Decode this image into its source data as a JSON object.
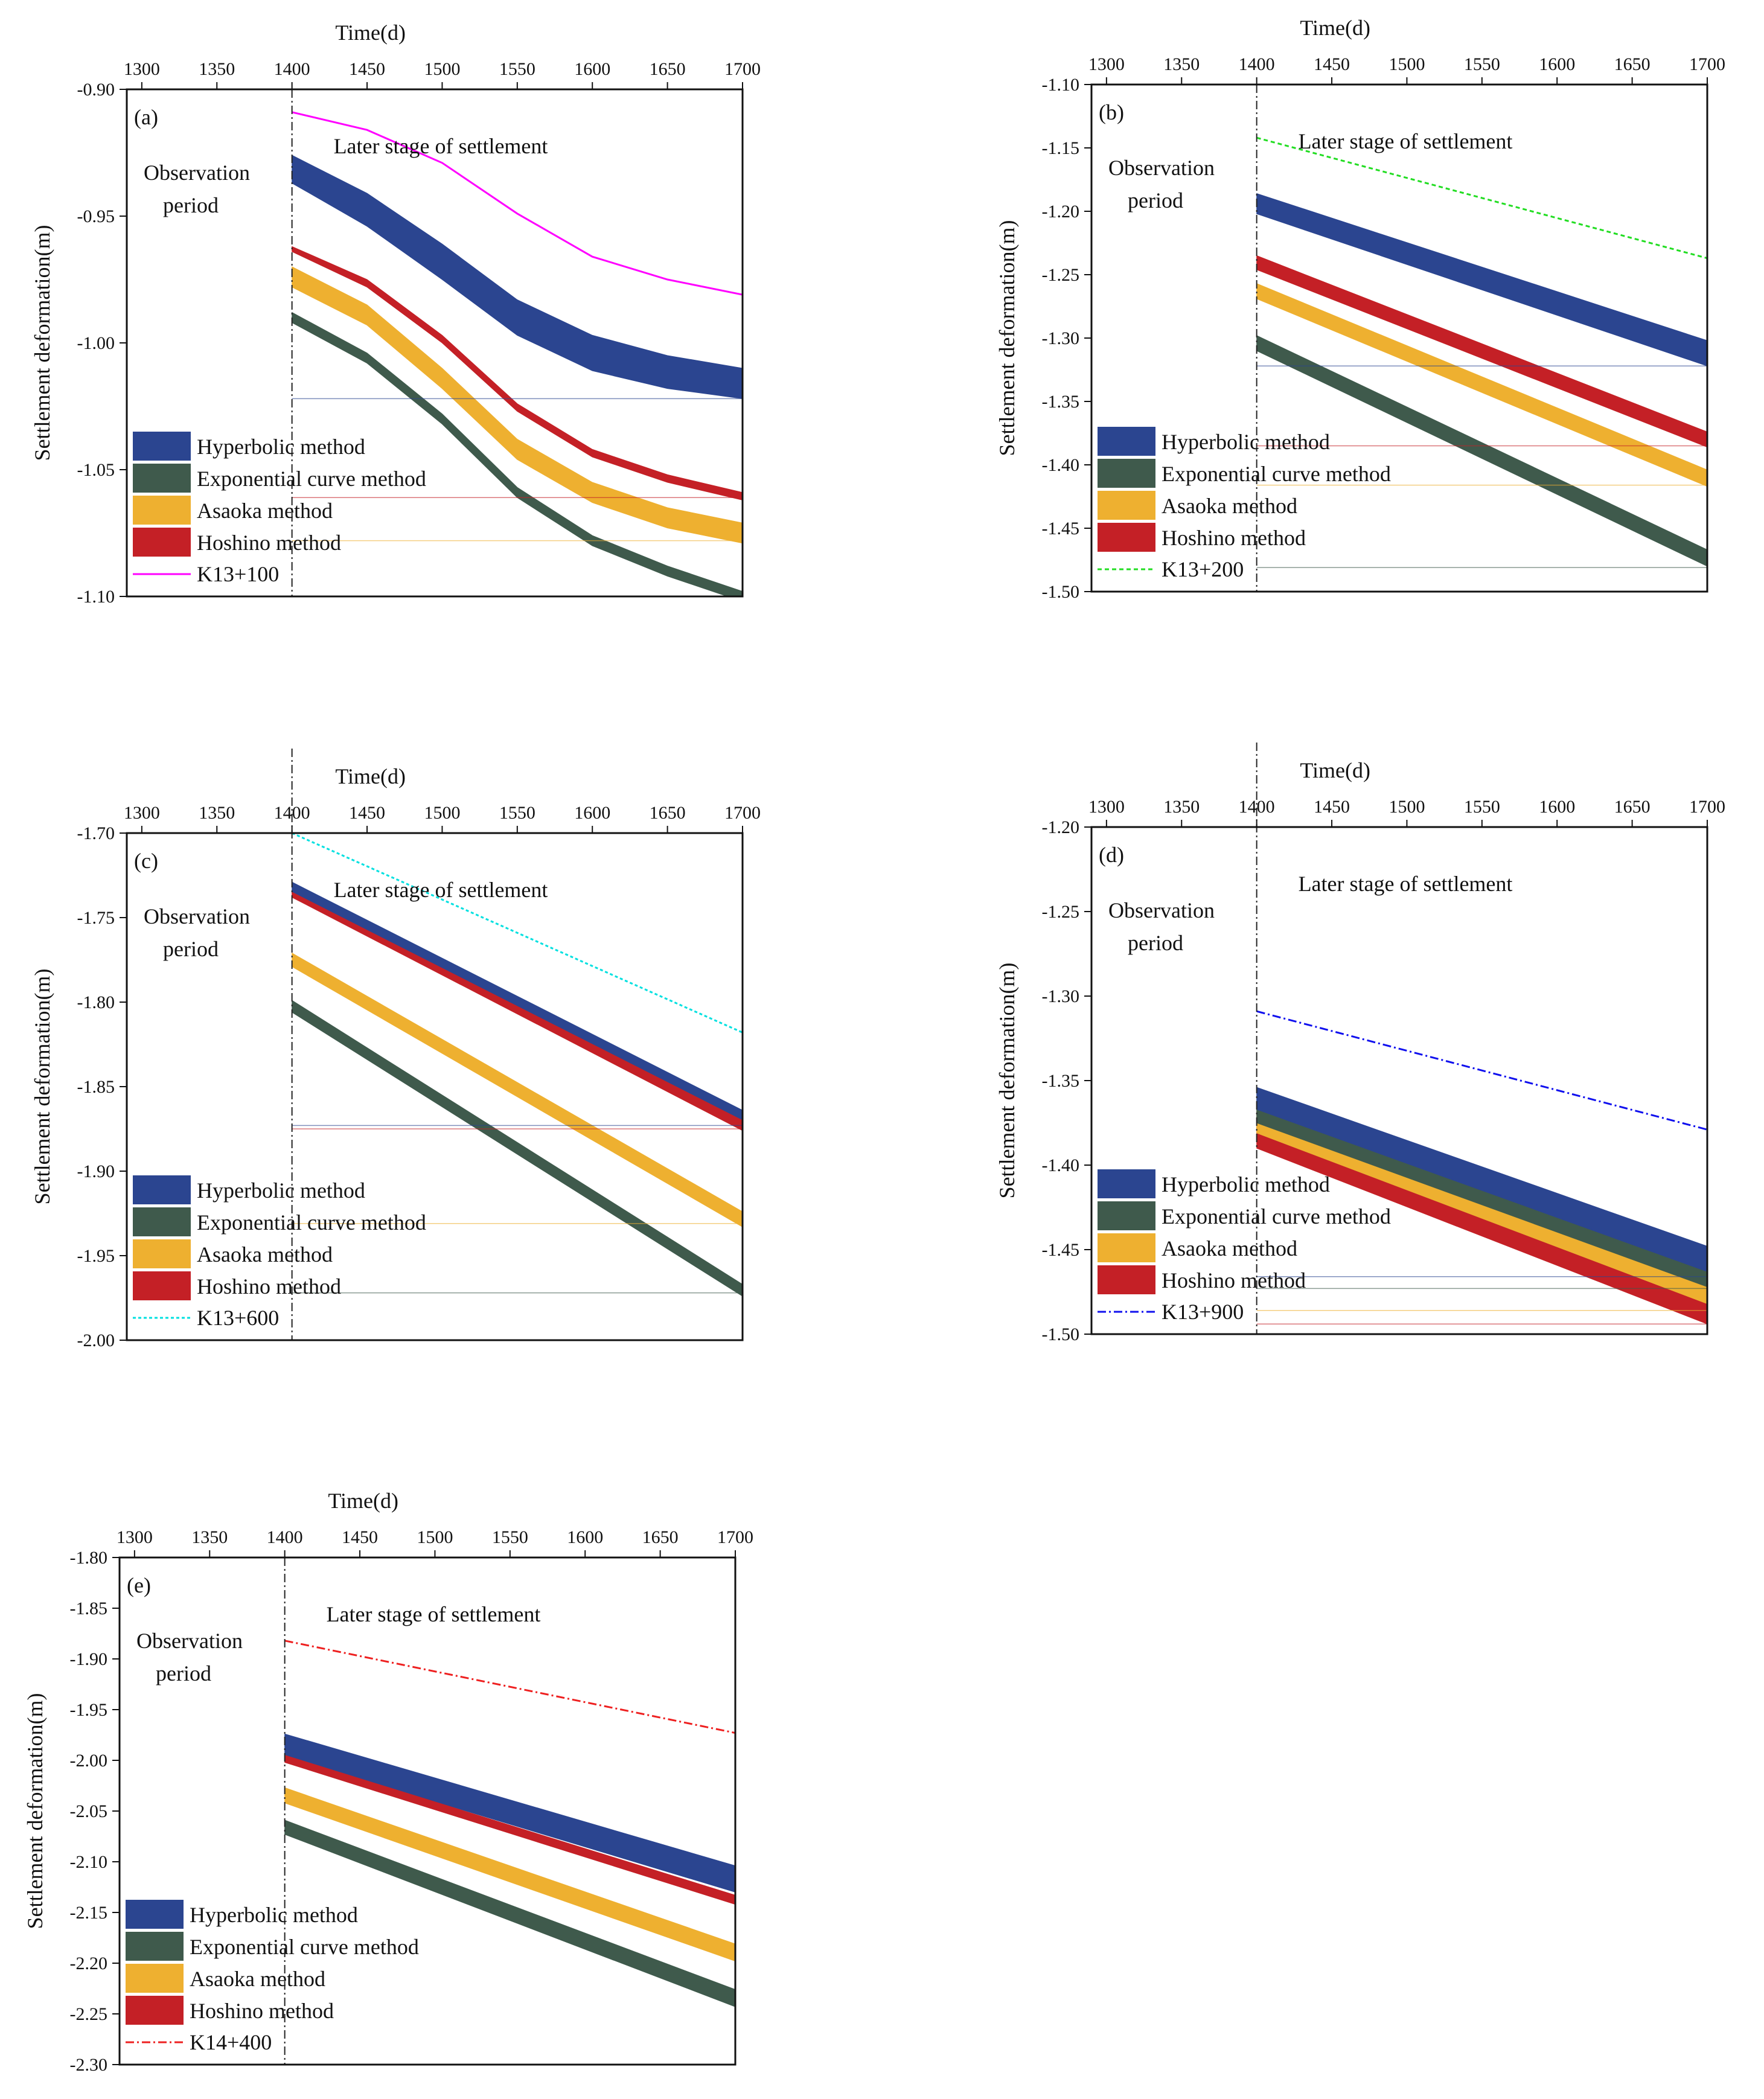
{
  "figure": {
    "band_colors": {
      "Hyperbolic method": "#2b4590",
      "Exponential curve method": "#3f5a4c",
      "Asaoka method": "#eeb030",
      "Hoshino method": "#c42026"
    },
    "period_labels": [
      "Observation",
      "period"
    ],
    "stage_label": "Later stage of settlement",
    "xlabel": "Time(d)",
    "ylabel": "Settlement deformation(m)"
  },
  "chart_data": [
    {
      "id": "a",
      "panel_label": "(a)",
      "type": "area",
      "x_ticks": [
        1300,
        1350,
        1400,
        1450,
        1500,
        1550,
        1600,
        1650,
        1700
      ],
      "y_ticks": [
        -0.9,
        -0.95,
        -1.0,
        -1.05,
        -1.1
      ],
      "y_tick_labels": [
        "-0.90",
        "-0.95",
        "-1.00",
        "-1.05",
        "-1.10"
      ],
      "xlim": [
        1290,
        1700
      ],
      "ylim": [
        -1.1,
        -0.9
      ],
      "divider_x": 1400,
      "x": [
        1400,
        1450,
        1500,
        1550,
        1600,
        1650,
        1700
      ],
      "bands": [
        {
          "name": "Hyperbolic method",
          "upper": [
            -0.926,
            -0.941,
            -0.961,
            -0.983,
            -0.997,
            -1.005,
            -1.01
          ],
          "lower": [
            -0.937,
            -0.954,
            -0.975,
            -0.997,
            -1.011,
            -1.018,
            -1.022
          ],
          "hline": -1.022
        },
        {
          "name": "Exponential curve method",
          "upper": [
            -0.988,
            -1.004,
            -1.028,
            -1.057,
            -1.076,
            -1.088,
            -1.098
          ],
          "lower": [
            -0.992,
            -1.008,
            -1.032,
            -1.061,
            -1.08,
            -1.092,
            -1.102
          ],
          "hline": null
        },
        {
          "name": "Asaoka method",
          "upper": [
            -0.97,
            -0.985,
            -1.01,
            -1.038,
            -1.055,
            -1.065,
            -1.071
          ],
          "lower": [
            -0.978,
            -0.993,
            -1.018,
            -1.046,
            -1.063,
            -1.073,
            -1.079
          ],
          "hline": -1.078
        },
        {
          "name": "Hoshino method",
          "upper": [
            -0.962,
            -0.975,
            -0.997,
            -1.024,
            -1.042,
            -1.052,
            -1.059
          ],
          "lower": [
            -0.964,
            -0.978,
            -1.0,
            -1.027,
            -1.045,
            -1.055,
            -1.062
          ],
          "hline": -1.061
        }
      ],
      "measured": {
        "name": "K13+100",
        "color": "#ff00ff",
        "dash": "",
        "y": [
          -0.909,
          -0.916,
          -0.929,
          -0.949,
          -0.966,
          -0.975,
          -0.981
        ]
      }
    },
    {
      "id": "b",
      "panel_label": "(b)",
      "type": "area",
      "x_ticks": [
        1300,
        1350,
        1400,
        1450,
        1500,
        1550,
        1600,
        1650,
        1700
      ],
      "y_ticks": [
        -1.1,
        -1.15,
        -1.2,
        -1.25,
        -1.3,
        -1.35,
        -1.4,
        -1.45,
        -1.5
      ],
      "y_tick_labels": [
        "-1.10",
        "-1.15",
        "-1.20",
        "-1.25",
        "-1.30",
        "-1.35",
        "-1.40",
        "-1.45",
        "-1.50"
      ],
      "xlim": [
        1290,
        1700
      ],
      "ylim": [
        -1.5,
        -1.1
      ],
      "divider_x": 1400,
      "x": [
        1400,
        1700
      ],
      "bands": [
        {
          "name": "Hyperbolic method",
          "upper": [
            -1.186,
            -1.302
          ],
          "lower": [
            -1.202,
            -1.322
          ],
          "hline": -1.322
        },
        {
          "name": "Exponential curve method",
          "upper": [
            -1.298,
            -1.467
          ],
          "lower": [
            -1.31,
            -1.48
          ],
          "hline": -1.481
        },
        {
          "name": "Asaoka method",
          "upper": [
            -1.257,
            -1.404
          ],
          "lower": [
            -1.269,
            -1.417
          ],
          "hline": -1.416
        },
        {
          "name": "Hoshino method",
          "upper": [
            -1.235,
            -1.374
          ],
          "lower": [
            -1.246,
            -1.386
          ],
          "hline": -1.385
        }
      ],
      "measured": {
        "name": "K13+200",
        "color": "#22dd22",
        "dash": "7,5",
        "y": [
          -1.142,
          -1.237
        ]
      }
    },
    {
      "id": "c",
      "panel_label": "(c)",
      "type": "area",
      "x_ticks": [
        1300,
        1350,
        1400,
        1450,
        1500,
        1550,
        1600,
        1650,
        1700
      ],
      "y_ticks": [
        -1.7,
        -1.75,
        -1.8,
        -1.85,
        -1.9,
        -1.95,
        -2.0
      ],
      "y_tick_labels": [
        "-1.70",
        "-1.75",
        "-1.80",
        "-1.85",
        "-1.90",
        "-1.95",
        "-2.00"
      ],
      "xlim": [
        1290,
        1700
      ],
      "ylim": [
        -2.0,
        -1.7
      ],
      "divider_x": 1400,
      "x": [
        1400,
        1700
      ],
      "bands": [
        {
          "name": "Hyperbolic method",
          "upper": [
            -1.729,
            -1.864
          ],
          "lower": [
            -1.737,
            -1.873
          ],
          "hline": -1.873
        },
        {
          "name": "Exponential curve method",
          "upper": [
            -1.799,
            -1.967
          ],
          "lower": [
            -1.806,
            -1.974
          ],
          "hline": -1.972
        },
        {
          "name": "Asaoka method",
          "upper": [
            -1.771,
            -1.924
          ],
          "lower": [
            -1.779,
            -1.933
          ],
          "hline": -1.931
        },
        {
          "name": "Hoshino method",
          "upper": [
            -1.735,
            -1.87
          ],
          "lower": [
            -1.738,
            -1.876
          ],
          "hline": -1.875
        }
      ],
      "measured": {
        "name": "K13+600",
        "color": "#00e0e0",
        "dash": "5,4",
        "y": [
          -1.7,
          -1.818
        ]
      }
    },
    {
      "id": "d",
      "panel_label": "(d)",
      "type": "area",
      "x_ticks": [
        1300,
        1350,
        1400,
        1450,
        1500,
        1550,
        1600,
        1650,
        1700
      ],
      "y_ticks": [
        -1.2,
        -1.25,
        -1.3,
        -1.35,
        -1.4,
        -1.45,
        -1.5
      ],
      "y_tick_labels": [
        "-1.20",
        "-1.25",
        "-1.30",
        "-1.35",
        "-1.40",
        "-1.45",
        "-1.50"
      ],
      "xlim": [
        1290,
        1700
      ],
      "ylim": [
        -1.5,
        -1.2
      ],
      "divider_x": 1400,
      "x": [
        1400,
        1700
      ],
      "bands": [
        {
          "name": "Hoshino method",
          "upper": [
            -1.377,
            -1.478
          ],
          "lower": [
            -1.39,
            -1.494
          ],
          "hline": -1.494
        },
        {
          "name": "Asaoka method",
          "upper": [
            -1.368,
            -1.467
          ],
          "lower": [
            -1.381,
            -1.482
          ],
          "hline": -1.486
        },
        {
          "name": "Exponential curve method",
          "upper": [
            -1.362,
            -1.458
          ],
          "lower": [
            -1.375,
            -1.472
          ],
          "hline": -1.473
        },
        {
          "name": "Hyperbolic method",
          "upper": [
            -1.354,
            -1.448
          ],
          "lower": [
            -1.367,
            -1.463
          ],
          "hline": -1.466
        }
      ],
      "measured": {
        "name": "K13+900",
        "color": "#1010ee",
        "dash": "14,5,3,5",
        "y": [
          -1.309,
          -1.379
        ]
      }
    },
    {
      "id": "e",
      "panel_label": "(e)",
      "type": "area",
      "x_ticks": [
        1300,
        1350,
        1400,
        1450,
        1500,
        1550,
        1600,
        1650,
        1700
      ],
      "y_ticks": [
        -1.8,
        -1.85,
        -1.9,
        -1.95,
        -2.0,
        -2.05,
        -2.1,
        -2.15,
        -2.2,
        -2.25,
        -2.3
      ],
      "y_tick_labels": [
        "-1.80",
        "-1.85",
        "-1.90",
        "-1.95",
        "-2.00",
        "-2.05",
        "-2.10",
        "-2.15",
        "-2.20",
        "-2.25",
        "-2.30"
      ],
      "xlim": [
        1290,
        1700
      ],
      "ylim": [
        -2.3,
        -1.8
      ],
      "divider_x": 1400,
      "x": [
        1400,
        1700
      ],
      "bands": [
        {
          "name": "Hyperbolic method",
          "upper": [
            -1.974,
            -2.104
          ],
          "lower": [
            -1.996,
            -2.13
          ],
          "hline": null
        },
        {
          "name": "Exponential curve method",
          "upper": [
            -2.059,
            -2.226
          ],
          "lower": [
            -2.073,
            -2.243
          ],
          "hline": null
        },
        {
          "name": "Asaoka method",
          "upper": [
            -2.027,
            -2.181
          ],
          "lower": [
            -2.042,
            -2.198
          ],
          "hline": null
        },
        {
          "name": "Hoshino method",
          "upper": [
            -1.995,
            -2.133
          ],
          "lower": [
            -2.002,
            -2.142
          ],
          "hline": null
        }
      ],
      "measured": {
        "name": "K14+400",
        "color": "#ee2020",
        "dash": "14,5,3,5",
        "y": [
          -1.882,
          -1.973
        ]
      }
    }
  ]
}
